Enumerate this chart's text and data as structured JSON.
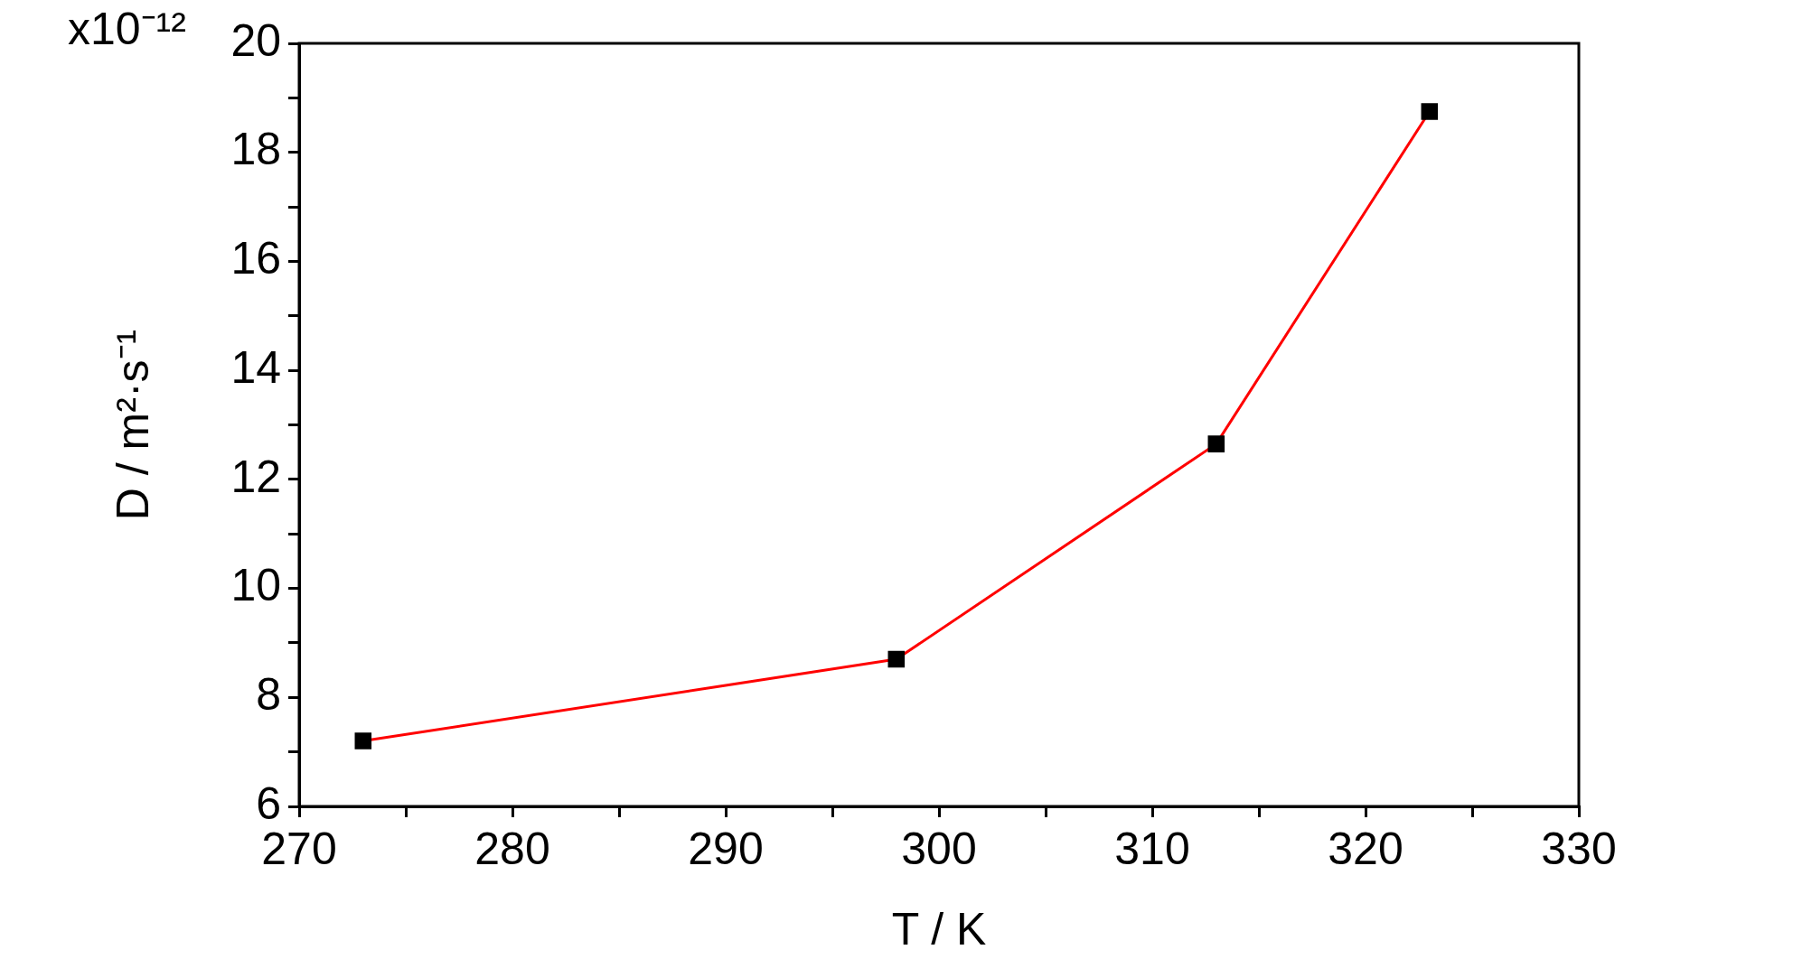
{
  "chart_data": {
    "type": "line",
    "xlabel": "T / K",
    "ylabel": "D / m²·s⁻¹",
    "annotations": [
      "x10⁻¹²"
    ],
    "x": [
      273,
      298,
      313,
      323
    ],
    "series": [
      {
        "color": "#ff0000",
        "colors": [
          "#000000",
          "#000000",
          "#000000",
          "#000000"
        ],
        "values": [
          7.2,
          8.7,
          12.65,
          18.75
        ]
      }
    ],
    "xlim": [
      270,
      330
    ],
    "xticks": [
      270,
      {
        "value": 275,
        "label": null
      },
      280,
      {
        "value": 285,
        "label": null
      },
      290,
      {
        "value": 295,
        "label": null
      },
      300,
      {
        "value": 305,
        "label": null
      },
      310,
      {
        "value": 315,
        "label": null
      },
      320,
      {
        "value": 325,
        "label": null
      },
      330
    ],
    "ylim": [
      6,
      20
    ],
    "yticks": [
      6,
      {
        "value": 7,
        "label": null
      },
      8,
      {
        "value": 9,
        "label": null
      },
      10,
      {
        "value": 11,
        "label": null
      },
      12,
      {
        "value": 13,
        "label": null
      },
      14,
      {
        "value": 15,
        "label": null
      },
      16,
      {
        "value": 17,
        "label": null
      },
      18,
      {
        "value": 19,
        "label": null
      },
      20
    ],
    "grid": false,
    "legend": false,
    "marker": "square",
    "line_style": "solid"
  }
}
